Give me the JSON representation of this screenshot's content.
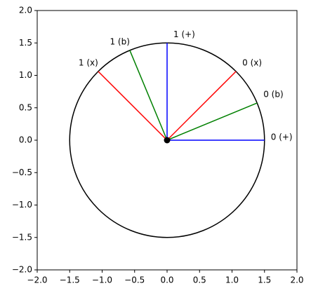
{
  "chart_data": {
    "type": "polar-segments",
    "xlim": [
      -2,
      2
    ],
    "ylim": [
      -2,
      2
    ],
    "xticks": [
      {
        "value": -2,
        "label": "−2.0"
      },
      {
        "value": -1.5,
        "label": "−1.5"
      },
      {
        "value": -1,
        "label": "−1.0"
      },
      {
        "value": -0.5,
        "label": "−0.5"
      },
      {
        "value": 0,
        "label": "0.0"
      },
      {
        "value": 0.5,
        "label": "0.5"
      },
      {
        "value": 1,
        "label": "1.0"
      },
      {
        "value": 1.5,
        "label": "1.5"
      },
      {
        "value": 2,
        "label": "2.0"
      }
    ],
    "yticks": [
      {
        "value": -2,
        "label": "−2.0"
      },
      {
        "value": -1.5,
        "label": "−1.5"
      },
      {
        "value": -1,
        "label": "−1.0"
      },
      {
        "value": -0.5,
        "label": "−0.5"
      },
      {
        "value": 0,
        "label": "0.0"
      },
      {
        "value": 0.5,
        "label": "0.5"
      },
      {
        "value": 1,
        "label": "1.0"
      },
      {
        "value": 1.5,
        "label": "1.5"
      },
      {
        "value": 2,
        "label": "2.0"
      }
    ],
    "circle": {
      "radius": 1.5,
      "color": "#000000"
    },
    "center": {
      "x": 0,
      "y": 0,
      "color": "#000000"
    },
    "segments": [
      {
        "label": "0 (+)",
        "color": "#0000ff",
        "x": [
          0,
          1.5
        ],
        "y": [
          0,
          0
        ]
      },
      {
        "label": "0 (b)",
        "color": "#008000",
        "x": [
          0,
          1.386
        ],
        "y": [
          0,
          0.574
        ]
      },
      {
        "label": "0 (x)",
        "color": "#ff0000",
        "x": [
          0,
          1.061
        ],
        "y": [
          0,
          1.061
        ]
      },
      {
        "label": "1 (+)",
        "color": "#0000ff",
        "x": [
          0,
          0
        ],
        "y": [
          0,
          1.5
        ]
      },
      {
        "label": "1 (b)",
        "color": "#008000",
        "x": [
          0,
          -0.574
        ],
        "y": [
          0,
          1.386
        ]
      },
      {
        "label": "1 (x)",
        "color": "#ff0000",
        "x": [
          0,
          -1.061
        ],
        "y": [
          0,
          1.061
        ]
      }
    ]
  }
}
